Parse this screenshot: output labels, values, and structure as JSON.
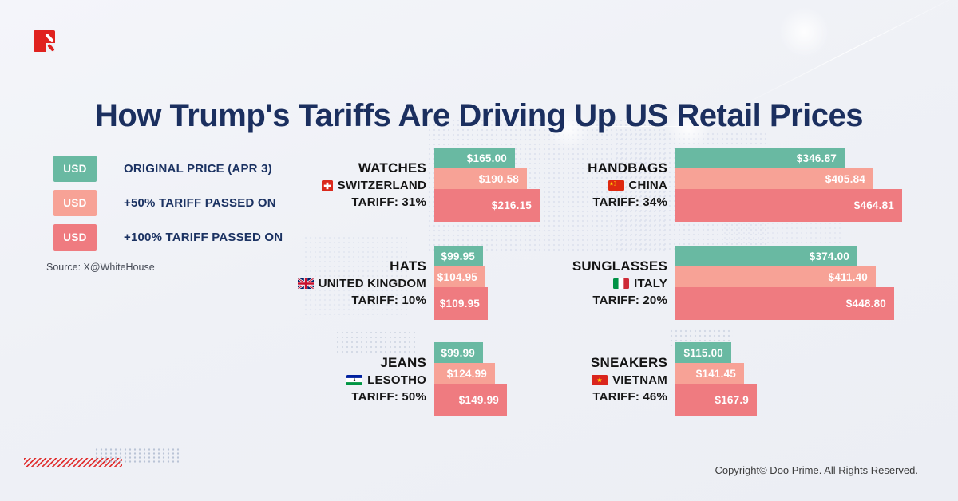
{
  "page": {
    "logo_icon": "doo-prime-logo",
    "source": "Source: X@WhiteHouse",
    "copyright": "Copyright© Doo Prime. All Rights Reserved."
  },
  "legend": {
    "swatch_text": "USD",
    "items": [
      {
        "series": "original",
        "label": "ORIGINAL PRICE (APR 3)"
      },
      {
        "series": "plus50",
        "label": "+50% TARIFF PASSED ON"
      },
      {
        "series": "plus100",
        "label": "+100% TARIFF PASSED ON"
      }
    ]
  },
  "chart_data": {
    "type": "bar",
    "orientation": "horizontal",
    "title": "How Trump's Tariffs Are Driving Up US Retail Prices",
    "unit": "USD",
    "legend_position": "top-left",
    "colors": {
      "original": "#69B9A2",
      "plus50": "#F7A296",
      "plus100": "#EF7B80"
    },
    "series_names": {
      "original": "ORIGINAL PRICE (APR 3)",
      "plus50": "+50% TARIFF PASSED ON",
      "plus100": "+100% TARIFF PASSED ON"
    },
    "groups": [
      {
        "product": "WATCHES",
        "country": "SWITZERLAND",
        "flag": "switzerland",
        "tariff_label": "TARIFF: 31%",
        "tariff_pct": 31,
        "column": "left",
        "row": 0,
        "bars": [
          {
            "series": "original",
            "label": "$165.00",
            "value": 165.0
          },
          {
            "series": "plus50",
            "label": "$190.58",
            "value": 190.58
          },
          {
            "series": "plus100",
            "label": "$216.15",
            "value": 216.15
          }
        ]
      },
      {
        "product": "HANDBAGS",
        "country": "CHINA",
        "flag": "china",
        "tariff_label": "TARIFF: 34%",
        "tariff_pct": 34,
        "column": "right",
        "row": 0,
        "bars": [
          {
            "series": "original",
            "label": "$346.87",
            "value": 346.87
          },
          {
            "series": "plus50",
            "label": "$405.84",
            "value": 405.84
          },
          {
            "series": "plus100",
            "label": "$464.81",
            "value": 464.81
          }
        ]
      },
      {
        "product": "HATS",
        "country": "UNITED KINGDOM",
        "flag": "uk",
        "tariff_label": "TARIFF: 10%",
        "tariff_pct": 10,
        "column": "left",
        "row": 1,
        "bars": [
          {
            "series": "original",
            "label": "$99.95",
            "value": 99.95
          },
          {
            "series": "plus50",
            "label": "$104.95",
            "value": 104.95
          },
          {
            "series": "plus100",
            "label": "$109.95",
            "value": 109.95
          }
        ]
      },
      {
        "product": "SUNGLASSES",
        "country": "ITALY",
        "flag": "italy",
        "tariff_label": "TARIFF: 20%",
        "tariff_pct": 20,
        "column": "right",
        "row": 1,
        "bars": [
          {
            "series": "original",
            "label": "$374.00",
            "value": 374.0
          },
          {
            "series": "plus50",
            "label": "$411.40",
            "value": 411.4
          },
          {
            "series": "plus100",
            "label": "$448.80",
            "value": 448.8
          }
        ]
      },
      {
        "product": "JEANS",
        "country": "LESOTHO",
        "flag": "lesotho",
        "tariff_label": "TARIFF: 50%",
        "tariff_pct": 50,
        "column": "left",
        "row": 2,
        "bars": [
          {
            "series": "original",
            "label": "$99.99",
            "value": 99.99
          },
          {
            "series": "plus50",
            "label": "$124.99",
            "value": 124.99
          },
          {
            "series": "plus100",
            "label": "$149.99",
            "value": 149.99
          }
        ]
      },
      {
        "product": "SNEAKERS",
        "country": "VIETNAM",
        "flag": "vietnam",
        "tariff_label": "TARIFF: 46%",
        "tariff_pct": 46,
        "column": "right",
        "row": 2,
        "bars": [
          {
            "series": "original",
            "label": "$115.00",
            "value": 115.0
          },
          {
            "series": "plus50",
            "label": "$141.45",
            "value": 141.45
          },
          {
            "series": "plus100",
            "label": "$167.9",
            "value": 167.9
          }
        ]
      }
    ]
  }
}
